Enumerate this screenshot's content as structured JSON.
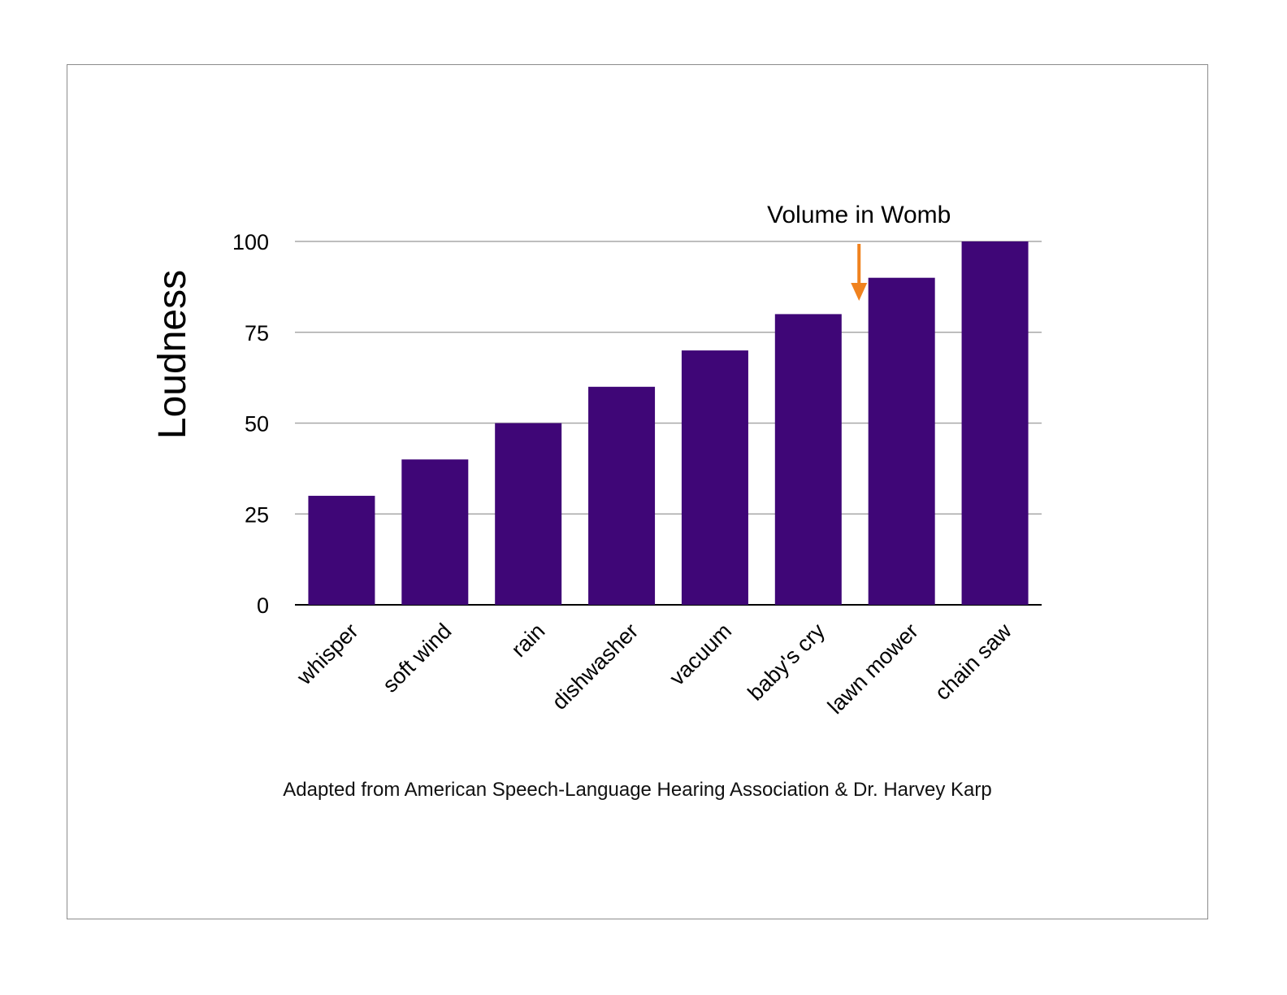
{
  "source_note": "Adapted from American Speech-Language Hearing Association & Dr. Harvey Karp",
  "colors": {
    "bar": "#3f0677",
    "annotation_arrow": "#f0821e",
    "grid": "#a8a8a8",
    "axis": "#000000"
  },
  "chart_data": {
    "type": "bar",
    "title": "",
    "xlabel": "",
    "ylabel": "Loudness",
    "categories": [
      "whisper",
      "soft wind",
      "rain",
      "dishwasher",
      "vacuum",
      "baby's cry",
      "lawn mower",
      "chain saw"
    ],
    "series": [
      {
        "values": [
          30,
          40,
          50,
          60,
          70,
          80,
          90,
          100
        ]
      }
    ],
    "ylim": [
      0,
      100
    ],
    "yticks": [
      0,
      25,
      50,
      75,
      100
    ],
    "grid": true,
    "legend": "none",
    "annotations": [
      {
        "text": "Volume in Womb",
        "target_category": "baby's cry",
        "pointer": "down-arrow"
      }
    ]
  }
}
